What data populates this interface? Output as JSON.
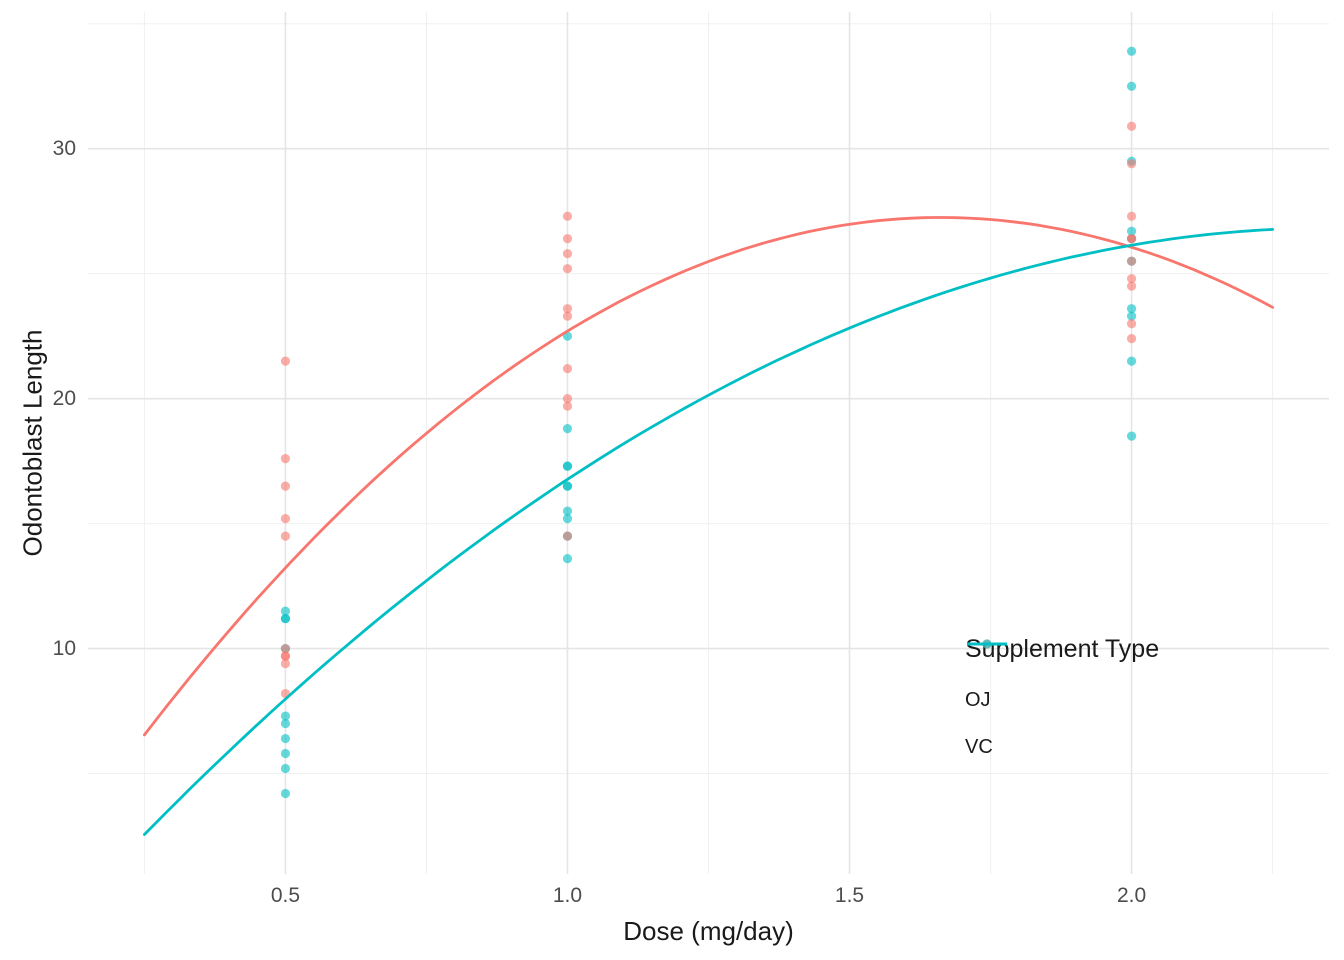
{
  "chart_data": {
    "type": "scatter",
    "title": "",
    "xlabel": "Dose (mg/day)",
    "ylabel": "Odontoblast Length",
    "x_ticks": [
      "0.5",
      "1.0",
      "1.5",
      "2.0"
    ],
    "x_tick_values": [
      0.5,
      1.0,
      1.5,
      2.0
    ],
    "x_minor_gridlines": [
      0.25,
      0.75,
      1.25,
      1.75,
      2.25
    ],
    "y_ticks": [
      "10",
      "20",
      "30"
    ],
    "y_tick_values": [
      10,
      20,
      30
    ],
    "y_minor_gridlines": [
      5,
      15,
      25,
      35
    ],
    "xlim": [
      0.15,
      2.35
    ],
    "ylim": [
      0.98,
      35.47
    ],
    "grid": true,
    "background": "#ffffff",
    "colors": {
      "grid_major": "#e5e5e5",
      "grid_minor": "#f0f0f0",
      "tick_label": "#4d4d4d",
      "axis_title": "#1a1a1a",
      "oj": "#F8766D",
      "vc": "#00BFC4"
    },
    "point_style": {
      "radius": 4.6,
      "opacity": 0.6
    },
    "line_style": {
      "width": 2.8
    },
    "legend": {
      "title": "Supplement Type",
      "position": "inside-right",
      "entries": [
        {
          "label": "OJ",
          "color": "#F8766D"
        },
        {
          "label": "VC",
          "color": "#00BFC4"
        }
      ]
    },
    "series": [
      {
        "name": "VC",
        "color": "#00BFC4",
        "points": [
          [
            0.5,
            4.2
          ],
          [
            0.5,
            11.5
          ],
          [
            0.5,
            7.3
          ],
          [
            0.5,
            5.8
          ],
          [
            0.5,
            6.4
          ],
          [
            0.5,
            10.0
          ],
          [
            0.5,
            11.2
          ],
          [
            0.5,
            11.2
          ],
          [
            0.5,
            5.2
          ],
          [
            0.5,
            7.0
          ],
          [
            1.0,
            16.5
          ],
          [
            1.0,
            16.5
          ],
          [
            1.0,
            15.2
          ],
          [
            1.0,
            17.3
          ],
          [
            1.0,
            22.5
          ],
          [
            1.0,
            17.3
          ],
          [
            1.0,
            13.6
          ],
          [
            1.0,
            14.5
          ],
          [
            1.0,
            18.8
          ],
          [
            1.0,
            15.5
          ],
          [
            2.0,
            23.6
          ],
          [
            2.0,
            18.5
          ],
          [
            2.0,
            33.9
          ],
          [
            2.0,
            25.5
          ],
          [
            2.0,
            26.4
          ],
          [
            2.0,
            32.5
          ],
          [
            2.0,
            26.7
          ],
          [
            2.0,
            21.5
          ],
          [
            2.0,
            23.3
          ],
          [
            2.0,
            29.5
          ]
        ],
        "smooth": {
          "type": "quadratic",
          "coef": [
            -3.5467,
            25.79,
            -5.4733
          ],
          "domain": [
            0.25,
            2.25
          ]
        }
      },
      {
        "name": "OJ",
        "color": "#F8766D",
        "points": [
          [
            0.5,
            15.2
          ],
          [
            0.5,
            21.5
          ],
          [
            0.5,
            17.6
          ],
          [
            0.5,
            9.7
          ],
          [
            0.5,
            14.5
          ],
          [
            0.5,
            10.0
          ],
          [
            0.5,
            8.2
          ],
          [
            0.5,
            9.4
          ],
          [
            0.5,
            16.5
          ],
          [
            0.5,
            9.7
          ],
          [
            1.0,
            19.7
          ],
          [
            1.0,
            23.3
          ],
          [
            1.0,
            23.6
          ],
          [
            1.0,
            26.4
          ],
          [
            1.0,
            20.0
          ],
          [
            1.0,
            25.2
          ],
          [
            1.0,
            25.8
          ],
          [
            1.0,
            21.2
          ],
          [
            1.0,
            14.5
          ],
          [
            1.0,
            27.3
          ],
          [
            2.0,
            25.5
          ],
          [
            2.0,
            26.4
          ],
          [
            2.0,
            22.4
          ],
          [
            2.0,
            24.5
          ],
          [
            2.0,
            24.8
          ],
          [
            2.0,
            30.9
          ],
          [
            2.0,
            26.4
          ],
          [
            2.0,
            27.3
          ],
          [
            2.0,
            29.4
          ],
          [
            2.0,
            23.0
          ]
        ],
        "smooth": {
          "type": "quadratic",
          "coef": [
            -1.4333,
            34.52,
            -10.3867
          ],
          "domain": [
            0.25,
            2.25
          ]
        }
      }
    ]
  }
}
